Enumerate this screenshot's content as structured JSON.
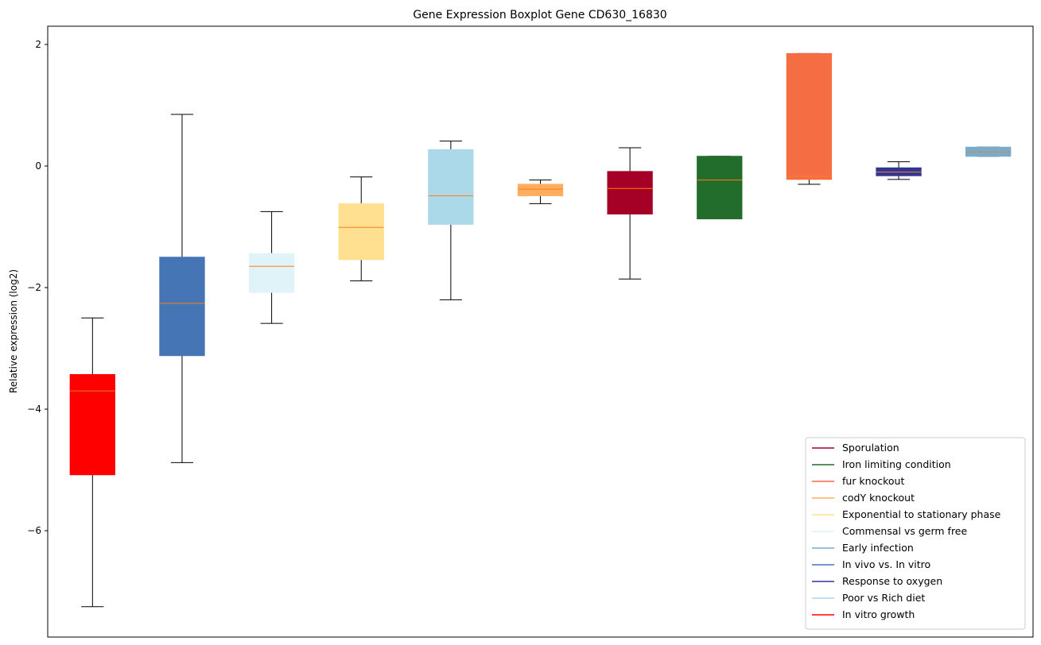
{
  "chart_data": {
    "type": "boxplot",
    "title": "Gene Expression Boxplot Gene CD630_16830",
    "xlabel": "",
    "ylabel": "Relative expression (log2)",
    "ylim": [
      -7.75,
      2.3
    ],
    "yticks": [
      2,
      0,
      -2,
      -4,
      -6
    ],
    "ytick_labels": [
      "2",
      "0",
      "−2",
      "−4",
      "−6"
    ],
    "grid": false,
    "legend_position": "bottom-right",
    "median_color": "#ff7f0e",
    "boxes": [
      {
        "name": "In vitro growth",
        "color": "#ff0000",
        "whisker_low": -7.25,
        "q1": -5.08,
        "median": -3.7,
        "q3": -3.43,
        "whisker_high": -2.5
      },
      {
        "name": "In vivo vs. In vitro",
        "color": "#4575b4",
        "whisker_low": -4.88,
        "q1": -3.12,
        "median": -2.26,
        "q3": -1.5,
        "whisker_high": 0.85
      },
      {
        "name": "Commensal vs germ free",
        "color": "#e0f3f8",
        "whisker_low": -2.59,
        "q1": -2.08,
        "median": -1.65,
        "q3": -1.44,
        "whisker_high": -0.75
      },
      {
        "name": "Exponential to stationary phase",
        "color": "#fee090",
        "whisker_low": -1.89,
        "q1": -1.54,
        "median": -1.01,
        "q3": -0.62,
        "whisker_high": -0.18
      },
      {
        "name": "Poor vs Rich diet",
        "color": "#abd9e9",
        "whisker_low": -2.2,
        "q1": -0.96,
        "median": -0.49,
        "q3": 0.27,
        "whisker_high": 0.41
      },
      {
        "name": "codY knockout",
        "color": "#fdae61",
        "whisker_low": -0.62,
        "q1": -0.49,
        "median": -0.38,
        "q3": -0.3,
        "whisker_high": -0.23
      },
      {
        "name": "Sporulation",
        "color": "#a50026",
        "whisker_low": -1.86,
        "q1": -0.79,
        "median": -0.37,
        "q3": -0.09,
        "whisker_high": 0.3
      },
      {
        "name": "Iron limiting condition",
        "color": "#226c2c",
        "whisker_low": -0.87,
        "q1": -0.87,
        "median": -0.23,
        "q3": 0.16,
        "whisker_high": 0.16
      },
      {
        "name": "fur knockout",
        "color": "#f46d43",
        "whisker_low": -0.3,
        "q1": -0.22,
        "median": -0.17,
        "q3": 1.85,
        "whisker_high": 1.85
      },
      {
        "name": "Response to oxygen",
        "color": "#313695",
        "whisker_low": -0.22,
        "q1": -0.16,
        "median": -0.1,
        "q3": -0.03,
        "whisker_high": 0.07
      },
      {
        "name": "Early infection",
        "color": "#74add1",
        "whisker_low": 0.16,
        "q1": 0.16,
        "median": 0.23,
        "q3": 0.31,
        "whisker_high": 0.31
      }
    ],
    "legend": [
      {
        "label": "Sporulation",
        "color": "#a50026"
      },
      {
        "label": "Iron limiting condition",
        "color": "#226c2c"
      },
      {
        "label": "fur knockout",
        "color": "#f46d43"
      },
      {
        "label": "codY knockout",
        "color": "#fdae61"
      },
      {
        "label": "Exponential to stationary phase",
        "color": "#fee090"
      },
      {
        "label": "Commensal vs germ free",
        "color": "#e0f3f8"
      },
      {
        "label": "Early infection",
        "color": "#74add1"
      },
      {
        "label": "In vivo vs. In vitro",
        "color": "#4575b4"
      },
      {
        "label": "Response to oxygen",
        "color": "#313695"
      },
      {
        "label": "Poor vs Rich diet",
        "color": "#abd9e9"
      },
      {
        "label": "In vitro growth",
        "color": "#ff0000"
      }
    ]
  }
}
